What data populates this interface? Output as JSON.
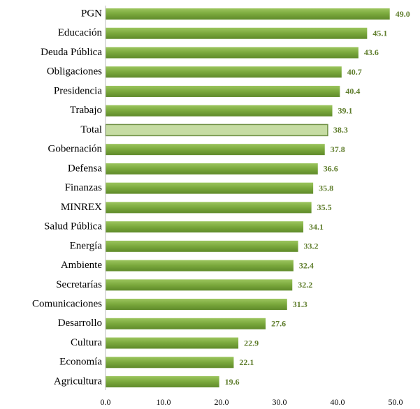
{
  "chart_data": {
    "type": "hbar",
    "categories": [
      "PGN",
      "Educación",
      "Deuda Pública",
      "Obligaciones",
      "Presidencia",
      "Trabajo",
      "Total",
      "Gobernación",
      "Defensa",
      "Finanzas",
      "MINREX",
      "Salud Pública",
      "Energía",
      "Ambiente",
      "Secretarías",
      "Comunicaciones",
      "Desarrollo",
      "Cultura",
      "Economía",
      "Agricultura"
    ],
    "values": [
      49.0,
      45.1,
      43.6,
      40.7,
      40.4,
      39.1,
      38.3,
      37.8,
      36.6,
      35.8,
      35.5,
      34.1,
      33.2,
      32.4,
      32.2,
      31.3,
      27.6,
      22.9,
      22.1,
      19.6
    ],
    "value_labels": [
      "49.0",
      "45.1",
      "43.6",
      "40.7",
      "40.4",
      "39.1",
      "38.3",
      "37.8",
      "36.6",
      "35.8",
      "35.5",
      "34.1",
      "33.2",
      "32.4",
      "32.2",
      "31.3",
      "27.6",
      "22.9",
      "22.1",
      "19.6"
    ],
    "bar_colors": [
      "#7aa83c",
      "#7aa83c",
      "#7aa83c",
      "#7aa83c",
      "#7aa83c",
      "#7aa83c",
      "#c6dca3",
      "#7aa83c",
      "#7aa83c",
      "#7aa83c",
      "#7aa83c",
      "#7aa83c",
      "#7aa83c",
      "#7aa83c",
      "#7aa83c",
      "#7aa83c",
      "#7aa83c",
      "#7aa83c",
      "#7aa83c",
      "#7aa83c"
    ],
    "label_color": "#5f7d2c",
    "xlim": [
      0,
      50
    ],
    "xticks": [
      {
        "value": 0,
        "label": "0.0"
      },
      {
        "value": 10,
        "label": "10.0"
      },
      {
        "value": 20,
        "label": "20.0"
      },
      {
        "value": 30,
        "label": "30.0"
      },
      {
        "value": 40,
        "label": "40.0"
      },
      {
        "value": 50,
        "label": "50.0"
      }
    ],
    "grid": false
  }
}
